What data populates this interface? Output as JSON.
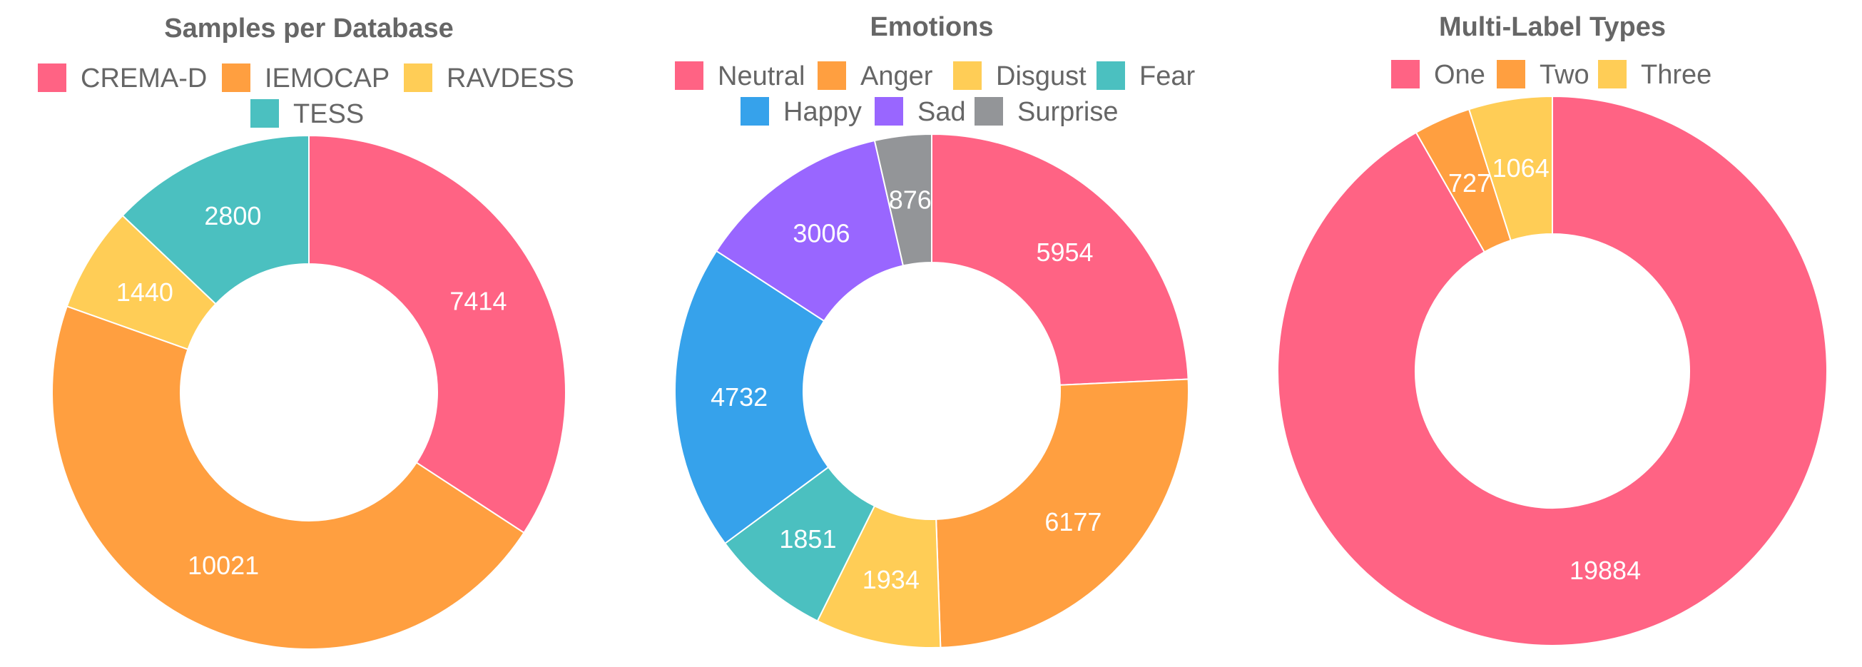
{
  "chart_data": [
    {
      "type": "pie",
      "title": "Samples per Database",
      "categories": [
        "CREMA-D",
        "IEMOCAP",
        "RAVDESS",
        "TESS"
      ],
      "values": [
        7414,
        10021,
        1440,
        2800
      ],
      "colors": [
        "#ff6384",
        "#ff9f40",
        "#ffcd56",
        "#4bc0c0"
      ],
      "legend_position": "top",
      "donut": true
    },
    {
      "type": "pie",
      "title": "Emotions",
      "categories": [
        "Neutral",
        "Anger",
        "Disgust",
        "Fear",
        "Happy",
        "Sad",
        "Surprise"
      ],
      "values": [
        5954,
        6177,
        1934,
        1851,
        4732,
        3006,
        876
      ],
      "colors": [
        "#ff6384",
        "#ff9f40",
        "#ffcd56",
        "#4bc0c0",
        "#36a2eb",
        "#9966ff",
        "#939598"
      ],
      "legend_position": "top",
      "donut": true
    },
    {
      "type": "pie",
      "title": "Multi-Label Types",
      "categories": [
        "One",
        "Two",
        "Three"
      ],
      "values": [
        19884,
        727,
        1064
      ],
      "colors": [
        "#ff6384",
        "#ff9f40",
        "#ffcd56"
      ],
      "legend_position": "top",
      "donut": true
    }
  ]
}
